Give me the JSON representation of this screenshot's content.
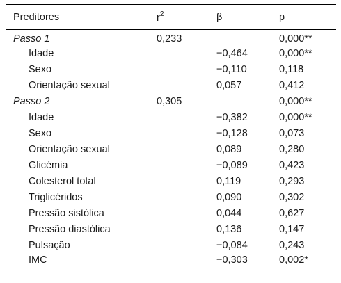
{
  "table": {
    "headers": {
      "predictors": "Preditores",
      "r_base": "r",
      "r_sup": "2",
      "beta": "β",
      "p": "p"
    },
    "rows": [
      {
        "label": "Passo 1",
        "r2": "0,233",
        "beta": "",
        "p": "0,000**"
      },
      {
        "label": "Idade",
        "r2": "",
        "beta": "−0,464",
        "p": "0,000**"
      },
      {
        "label": "Sexo",
        "r2": "",
        "beta": "−0,110",
        "p": "0,118"
      },
      {
        "label": "Orientação sexual",
        "r2": "",
        "beta": "0,057",
        "p": "0,412"
      },
      {
        "label": "Passo 2",
        "r2": "0,305",
        "beta": "",
        "p": "0,000**"
      },
      {
        "label": "Idade",
        "r2": "",
        "beta": "−0,382",
        "p": "0,000**"
      },
      {
        "label": "Sexo",
        "r2": "",
        "beta": "−0,128",
        "p": "0,073"
      },
      {
        "label": "Orientação sexual",
        "r2": "",
        "beta": "0,089",
        "p": "0,280"
      },
      {
        "label": "Glicémia",
        "r2": "",
        "beta": "−0,089",
        "p": "0,423"
      },
      {
        "label": "Colesterol total",
        "r2": "",
        "beta": "0,119",
        "p": "0,293"
      },
      {
        "label": "Triglicéridos",
        "r2": "",
        "beta": "0,090",
        "p": "0,302"
      },
      {
        "label": "Pressão sistólica",
        "r2": "",
        "beta": "0,044",
        "p": "0,627"
      },
      {
        "label": "Pressão diastólica",
        "r2": "",
        "beta": "0,136",
        "p": "0,147"
      },
      {
        "label": "Pulsação",
        "r2": "",
        "beta": "−0,084",
        "p": "0,243"
      },
      {
        "label": "IMC",
        "r2": "",
        "beta": "−0,303",
        "p": "0,002*"
      }
    ]
  }
}
